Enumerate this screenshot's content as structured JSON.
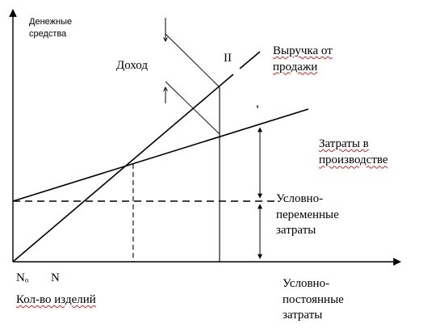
{
  "labels": {
    "money_axis": "Денежные средства",
    "income": "Доход",
    "numeral": "II",
    "tick_mark": "'",
    "revenue": "Выручка от продажи",
    "production_costs": "Затраты в производстве",
    "variable_costs": "Условно-переменные затраты",
    "fixed_costs": "Условно-постоянные затраты",
    "n0": "Nₒ",
    "n": "N",
    "quantity_axis": "Кол-во изделий"
  }
}
